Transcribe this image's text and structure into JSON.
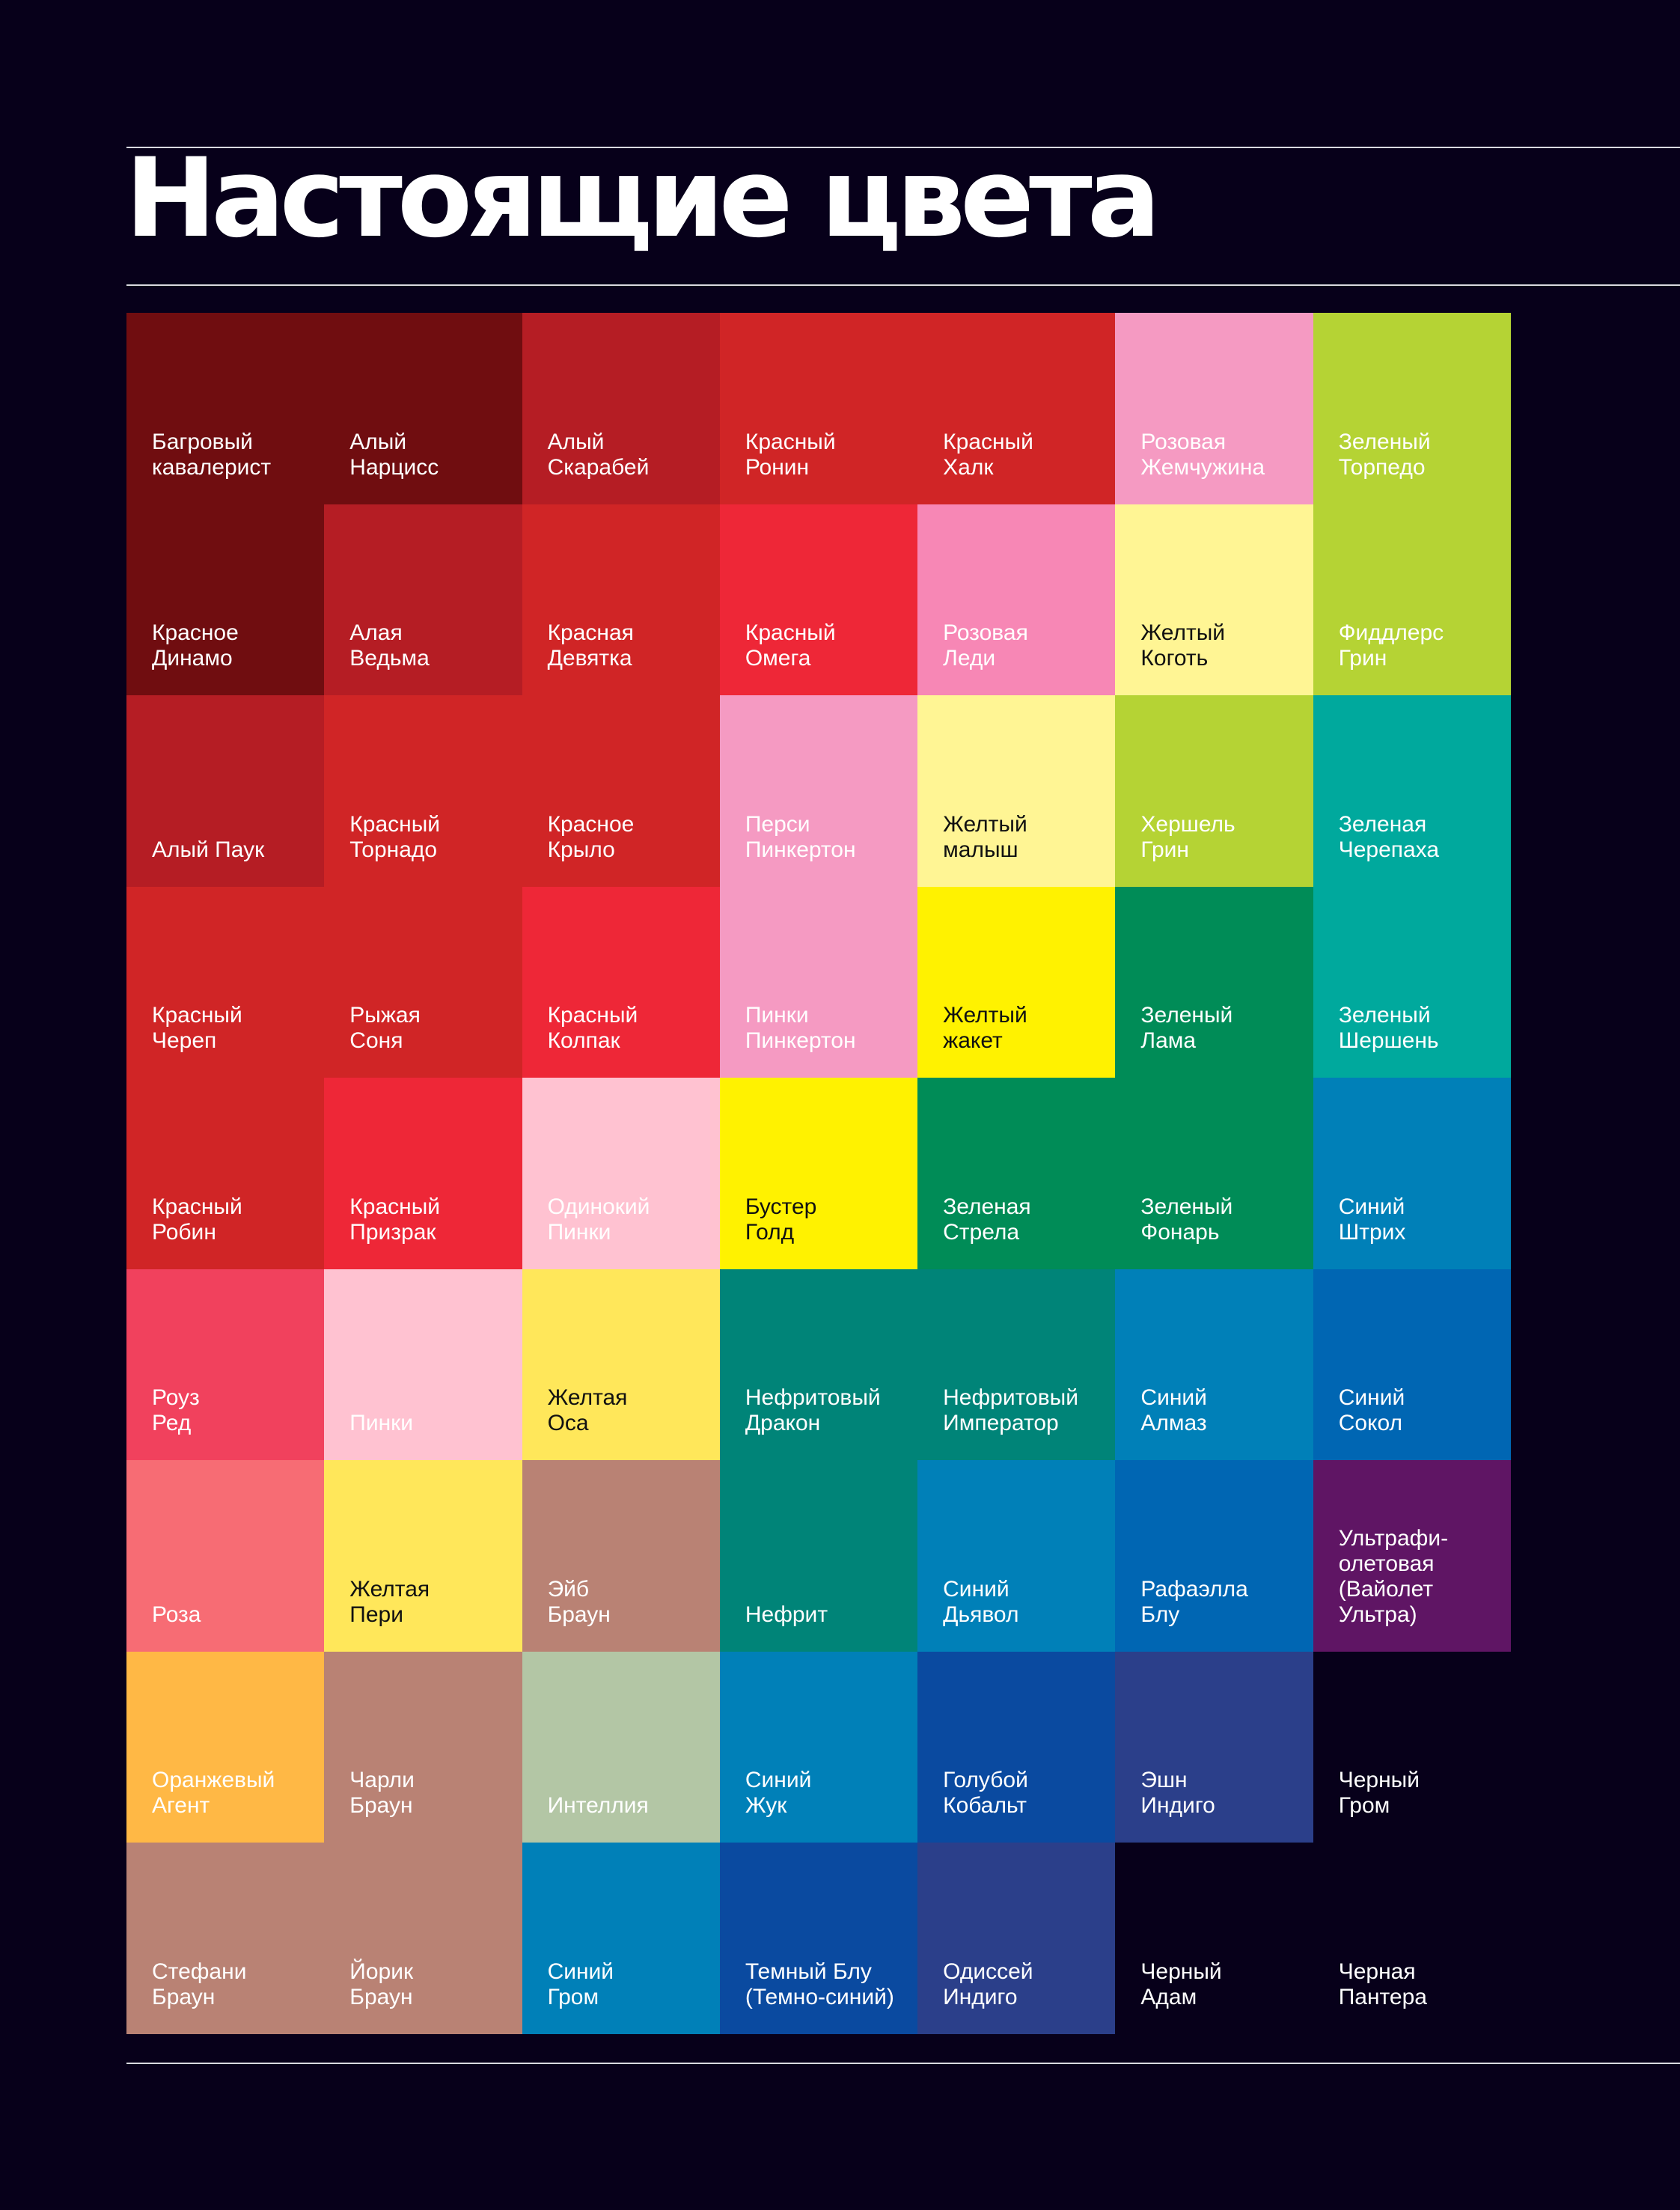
{
  "title": "Настоящие цвета",
  "tiles": [
    {
      "name": "Багровый\nкавалерист",
      "color": "#700d10",
      "text_color": "#ffffff"
    },
    {
      "name": "Алый\nНарцисс",
      "color": "#700d10",
      "text_color": "#ffffff"
    },
    {
      "name": "Алый\nСкарабей",
      "color": "#b51d24",
      "text_color": "#ffffff"
    },
    {
      "name": "Красный\nРонин",
      "color": "#d02526",
      "text_color": "#ffffff"
    },
    {
      "name": "Красный\nХалк",
      "color": "#d02526",
      "text_color": "#ffffff"
    },
    {
      "name": "Розовая\nЖемчужина",
      "color": "#f59ac2",
      "text_color": "#ffffff"
    },
    {
      "name": "Зеленый\nТорпедо",
      "color": "#b5d334",
      "text_color": "#ffffff"
    },
    {
      "name": "Красное\nДинамо",
      "color": "#700d10",
      "text_color": "#ffffff"
    },
    {
      "name": "Алая\nВедьма",
      "color": "#b51d24",
      "text_color": "#ffffff"
    },
    {
      "name": "Красная\nДевятка",
      "color": "#d02526",
      "text_color": "#ffffff"
    },
    {
      "name": "Красный\nОмега",
      "color": "#ee2737",
      "text_color": "#ffffff"
    },
    {
      "name": "Розовая\nЛеди",
      "color": "#f787b5",
      "text_color": "#ffffff"
    },
    {
      "name": "Желтый\nКоготь",
      "color": "#fff594",
      "text_color": "#111111"
    },
    {
      "name": "Фиддлерс\nГрин",
      "color": "#b5d334",
      "text_color": "#ffffff"
    },
    {
      "name": "Алый Паук",
      "color": "#b51d24",
      "text_color": "#ffffff"
    },
    {
      "name": "Красный\nТорнадо",
      "color": "#d02526",
      "text_color": "#ffffff"
    },
    {
      "name": "Красное\nКрыло",
      "color": "#d02526",
      "text_color": "#ffffff"
    },
    {
      "name": "Перси\nПинкертон",
      "color": "#f59ac2",
      "text_color": "#ffffff"
    },
    {
      "name": "Желтый\nмалыш",
      "color": "#fff594",
      "text_color": "#111111"
    },
    {
      "name": "Хершель\nГрин",
      "color": "#b5d334",
      "text_color": "#ffffff"
    },
    {
      "name": "Зеленая\nЧерепаха",
      "color": "#00a99d",
      "text_color": "#ffffff"
    },
    {
      "name": "Красный\nЧереп",
      "color": "#d02526",
      "text_color": "#ffffff"
    },
    {
      "name": "Рыжая\nСоня",
      "color": "#d02526",
      "text_color": "#ffffff"
    },
    {
      "name": "Красный\nКолпак",
      "color": "#ee2737",
      "text_color": "#ffffff"
    },
    {
      "name": "Пинки\nПинкертон",
      "color": "#f59ac2",
      "text_color": "#ffffff"
    },
    {
      "name": "Желтый\nжакет",
      "color": "#fff200",
      "text_color": "#111111"
    },
    {
      "name": "Зеленый\nЛама",
      "color": "#008c57",
      "text_color": "#ffffff"
    },
    {
      "name": "Зеленый\nШершень",
      "color": "#00a99d",
      "text_color": "#ffffff"
    },
    {
      "name": "Красный\nРобин",
      "color": "#d02526",
      "text_color": "#ffffff"
    },
    {
      "name": "Красный\nПризрак",
      "color": "#ee2737",
      "text_color": "#ffffff"
    },
    {
      "name": "Одинокий\nПинки",
      "color": "#ffc2d1",
      "text_color": "#ffffff"
    },
    {
      "name": "Бустер\nГолд",
      "color": "#fff200",
      "text_color": "#111111"
    },
    {
      "name": "Зеленая\nСтрела",
      "color": "#008c57",
      "text_color": "#ffffff"
    },
    {
      "name": "Зеленый\nФонарь",
      "color": "#008c57",
      "text_color": "#ffffff"
    },
    {
      "name": "Синий\nШтрих",
      "color": "#0080b8",
      "text_color": "#ffffff"
    },
    {
      "name": "Роуз\nРед",
      "color": "#f1415d",
      "text_color": "#ffffff"
    },
    {
      "name": "Пинки",
      "color": "#ffc2d1",
      "text_color": "#ffffff"
    },
    {
      "name": "Желтая\nОса",
      "color": "#ffe75a",
      "text_color": "#111111"
    },
    {
      "name": "Нефритовый\nДракон",
      "color": "#008478",
      "text_color": "#ffffff"
    },
    {
      "name": "Нефритовый\nИмператор",
      "color": "#008478",
      "text_color": "#ffffff"
    },
    {
      "name": "Синий\nАлмаз",
      "color": "#0080b8",
      "text_color": "#ffffff"
    },
    {
      "name": "Синий\nСокол",
      "color": "#0066b3",
      "text_color": "#ffffff"
    },
    {
      "name": "Роза",
      "color": "#f76c74",
      "text_color": "#ffffff"
    },
    {
      "name": "Желтая\nПери",
      "color": "#ffe75a",
      "text_color": "#111111"
    },
    {
      "name": "Эйб\nБраун",
      "color": "#b98274",
      "text_color": "#ffffff"
    },
    {
      "name": "Нефрит",
      "color": "#008478",
      "text_color": "#ffffff"
    },
    {
      "name": "Синий\nДьявол",
      "color": "#0080b8",
      "text_color": "#ffffff"
    },
    {
      "name": "Рафаэлла\nБлу",
      "color": "#0066b3",
      "text_color": "#ffffff"
    },
    {
      "name": "Ультрафи-\nолетовая\n(Вайолет\nУльтра)",
      "color": "#5f1564",
      "text_color": "#ffffff"
    },
    {
      "name": "Оранжевый\nАгент",
      "color": "#ffb845",
      "text_color": "#ffffff"
    },
    {
      "name": "Чарли\nБраун",
      "color": "#b98274",
      "text_color": "#ffffff"
    },
    {
      "name": "Интеллия",
      "color": "#b3c6a5",
      "text_color": "#ffffff"
    },
    {
      "name": "Синий\nЖук",
      "color": "#0080b8",
      "text_color": "#ffffff"
    },
    {
      "name": "Голубой\nКобальт",
      "color": "#0a4aa0",
      "text_color": "#ffffff"
    },
    {
      "name": "Эшн\nИндиго",
      "color": "#2b3f8a",
      "text_color": "#ffffff"
    },
    {
      "name": "Черный\nГром",
      "color": "#07001a",
      "text_color": "#ffffff"
    },
    {
      "name": "Стефани\nБраун",
      "color": "#b98274",
      "text_color": "#ffffff"
    },
    {
      "name": "Йорик\nБраун",
      "color": "#b98274",
      "text_color": "#ffffff"
    },
    {
      "name": "Синий\nГром",
      "color": "#0080b8",
      "text_color": "#ffffff"
    },
    {
      "name": "Темный Блу\n(Темно-синий)",
      "color": "#0a4aa0",
      "text_color": "#ffffff"
    },
    {
      "name": "Одиссей\nИндиго",
      "color": "#2b3f8a",
      "text_color": "#ffffff"
    },
    {
      "name": "Черный\nАдам",
      "color": "#07001a",
      "text_color": "#ffffff"
    },
    {
      "name": "Черная\nПантера",
      "color": "#07001a",
      "text_color": "#ffffff"
    }
  ]
}
